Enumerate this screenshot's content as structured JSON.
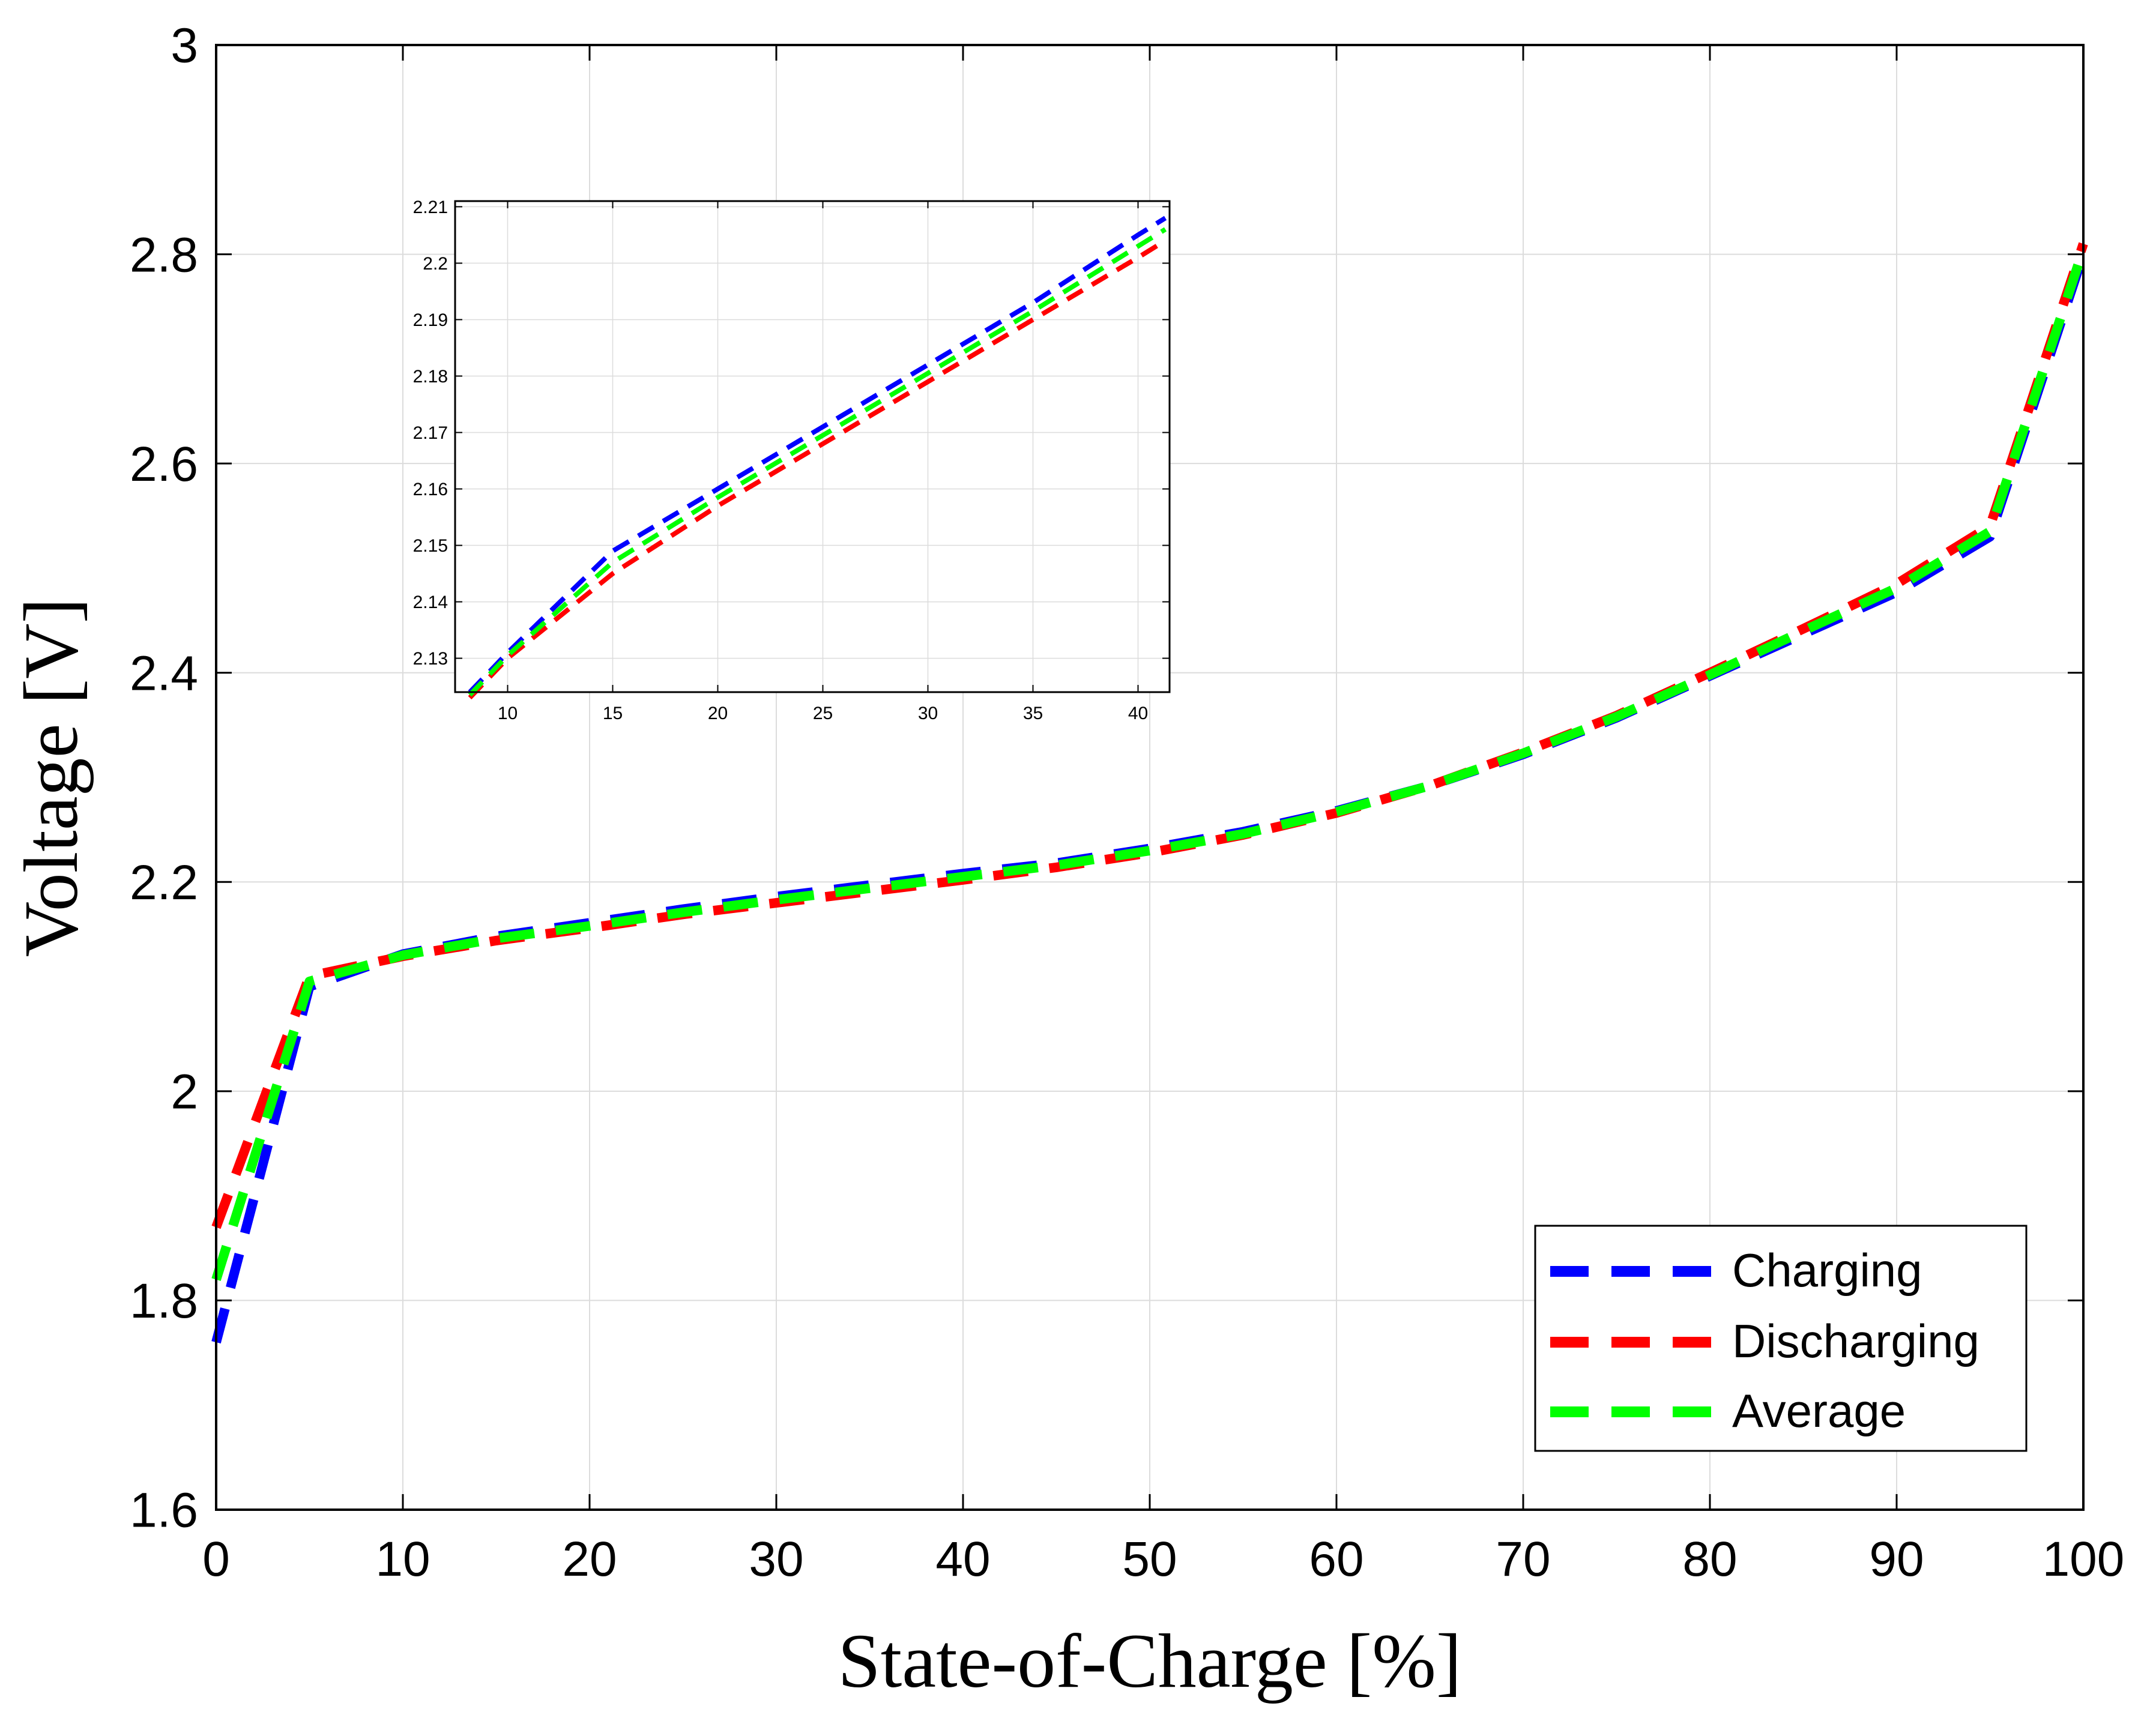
{
  "chart_data": [
    {
      "type": "line",
      "title": "",
      "xlabel": "State-of-Charge [%]",
      "ylabel": "Voltage [V]",
      "xlim": [
        0,
        100
      ],
      "ylim": [
        1.6,
        3.0
      ],
      "x_ticks": [
        0,
        10,
        20,
        30,
        40,
        50,
        60,
        70,
        80,
        90,
        100
      ],
      "x_tick_labels": [
        "0",
        "10",
        "20",
        "30",
        "40",
        "50",
        "60",
        "70",
        "80",
        "90",
        "100"
      ],
      "y_ticks": [
        1.6,
        1.8,
        2.0,
        2.2,
        2.4,
        2.6,
        2.8,
        3.0
      ],
      "y_tick_labels": [
        "1.6",
        "1.8",
        "2",
        "2.2",
        "2.4",
        "2.6",
        "2.8",
        "3"
      ],
      "grid": true,
      "legend_position": "bottom-right",
      "series": [
        {
          "name": "Charging",
          "color": "#0000ff",
          "style": "dashed",
          "x": [
            0,
            5,
            10,
            15,
            20,
            25,
            30,
            35,
            40,
            45,
            50,
            55,
            60,
            65,
            70,
            75,
            80,
            85,
            90,
            95,
            100
          ],
          "y": [
            1.76,
            2.1,
            2.131,
            2.148,
            2.161,
            2.174,
            2.186,
            2.197,
            2.208,
            2.218,
            2.232,
            2.248,
            2.268,
            2.292,
            2.322,
            2.357,
            2.397,
            2.437,
            2.477,
            2.53,
            2.8
          ]
        },
        {
          "name": "Discharging",
          "color": "#ff0000",
          "style": "dashed",
          "x": [
            0,
            5,
            10,
            15,
            20,
            25,
            30,
            35,
            40,
            45,
            50,
            55,
            60,
            65,
            70,
            75,
            80,
            85,
            90,
            95,
            100
          ],
          "y": [
            1.87,
            2.11,
            2.129,
            2.144,
            2.156,
            2.169,
            2.18,
            2.191,
            2.202,
            2.214,
            2.228,
            2.245,
            2.266,
            2.292,
            2.324,
            2.359,
            2.4,
            2.442,
            2.485,
            2.54,
            2.81
          ]
        },
        {
          "name": "Average",
          "color": "#00ff00",
          "style": "dashed",
          "x": [
            0,
            5,
            10,
            15,
            20,
            25,
            30,
            35,
            40,
            45,
            50,
            55,
            60,
            65,
            70,
            75,
            80,
            85,
            90,
            95,
            100
          ],
          "y": [
            1.82,
            2.105,
            2.13,
            2.146,
            2.158,
            2.171,
            2.183,
            2.194,
            2.205,
            2.216,
            2.23,
            2.246,
            2.267,
            2.292,
            2.323,
            2.358,
            2.398,
            2.44,
            2.481,
            2.535,
            2.805
          ]
        }
      ]
    },
    {
      "type": "line",
      "title": "",
      "xlabel": "",
      "ylabel": "",
      "xlim": [
        7.5,
        41.5
      ],
      "ylim": [
        2.124,
        2.211
      ],
      "x_ticks": [
        10,
        15,
        20,
        25,
        30,
        35,
        40
      ],
      "x_tick_labels": [
        "10",
        "15",
        "20",
        "25",
        "30",
        "35",
        "40"
      ],
      "y_ticks": [
        2.13,
        2.14,
        2.15,
        2.16,
        2.17,
        2.18,
        2.19,
        2.2,
        2.21
      ],
      "y_tick_labels": [
        "2.13",
        "2.14",
        "2.15",
        "2.16",
        "2.17",
        "2.18",
        "2.19",
        "2.2",
        "2.21"
      ],
      "grid": true,
      "series": [
        {
          "name": "Charging",
          "color": "#0000ff",
          "style": "dashed",
          "x": [
            8.2,
            10,
            15,
            20,
            25,
            30,
            35,
            40,
            41.3
          ],
          "y": [
            2.124,
            2.131,
            2.149,
            2.16,
            2.171,
            2.182,
            2.193,
            2.205,
            2.208
          ]
        },
        {
          "name": "Discharging",
          "color": "#ff0000",
          "style": "dashed",
          "x": [
            8.2,
            10,
            15,
            20,
            25,
            30,
            35,
            40,
            41.3
          ],
          "y": [
            2.123,
            2.13,
            2.145,
            2.157,
            2.168,
            2.179,
            2.19,
            2.201,
            2.204
          ]
        },
        {
          "name": "Average",
          "color": "#00ff00",
          "style": "dashed",
          "x": [
            8.2,
            10,
            15,
            20,
            25,
            30,
            35,
            40,
            41.3
          ],
          "y": [
            2.1235,
            2.1305,
            2.147,
            2.1585,
            2.1695,
            2.1805,
            2.1915,
            2.203,
            2.206
          ]
        }
      ]
    }
  ]
}
